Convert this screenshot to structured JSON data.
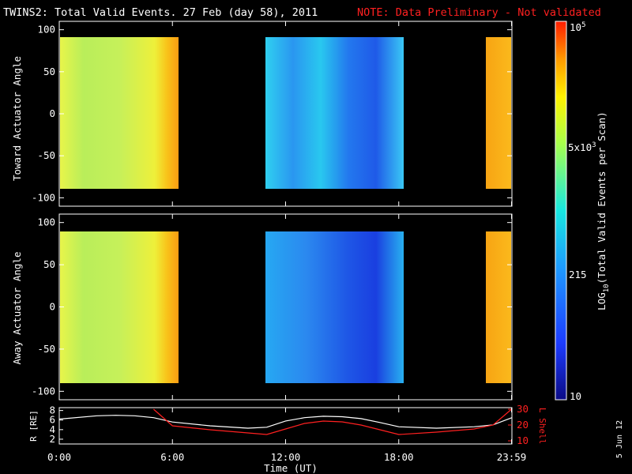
{
  "title": "TWINS2: Total Valid Events. 27 Feb (day  58), 2011",
  "note": "NOTE: Data Preliminary - Not validated",
  "date_stamp": "5 Jun 12",
  "chart_data": [
    {
      "type": "heatmap",
      "panel": "toward",
      "ylabel": "Toward Actuator Angle",
      "yticks": [
        100,
        50,
        0,
        -50,
        -100
      ],
      "ylim": [
        -110,
        110
      ],
      "blocks": [
        {
          "x_start": "0:00",
          "x_end": "6:05",
          "y_range": [
            -88,
            90
          ],
          "log_level_start": 3.6,
          "log_level_end": 4.3
        },
        {
          "x_start": "10:50",
          "x_end": "18:00",
          "y_range": [
            -88,
            90
          ],
          "log_level_start": 2.7,
          "log_level_end": 3.0
        },
        {
          "x_start": "22:30",
          "x_end": "23:59",
          "y_range": [
            -88,
            90
          ],
          "log_level_start": 4.3,
          "log_level_end": 4.4
        }
      ]
    },
    {
      "type": "heatmap",
      "panel": "away",
      "ylabel": "Away Actuator Angle",
      "yticks": [
        100,
        50,
        0,
        -50,
        -100
      ],
      "ylim": [
        -110,
        110
      ],
      "blocks": [
        {
          "x_start": "0:00",
          "x_end": "6:05",
          "y_range": [
            -88,
            90
          ],
          "log_level_start": 3.6,
          "log_level_end": 4.3
        },
        {
          "x_start": "10:50",
          "x_end": "18:00",
          "y_range": [
            -88,
            90
          ],
          "log_level_start": 2.6,
          "log_level_end": 2.9
        },
        {
          "x_start": "22:30",
          "x_end": "23:59",
          "y_range": [
            -88,
            90
          ],
          "log_level_start": 4.3,
          "log_level_end": 4.4
        }
      ]
    },
    {
      "type": "line",
      "panel": "ephemeris",
      "ylabel_left": "R [RE]",
      "ylabel_right": "L Shell",
      "left_ticks": [
        2,
        4,
        6,
        8
      ],
      "right_ticks": [
        10,
        20,
        30
      ],
      "series": [
        {
          "name": "R [RE]",
          "color": "#ffffff",
          "x": [
            0,
            2,
            3,
            4,
            5,
            6,
            8,
            10,
            11,
            12,
            13,
            14,
            15,
            16,
            17,
            18,
            20,
            22,
            23,
            24
          ],
          "y": [
            6.2,
            6.9,
            7.0,
            6.9,
            6.5,
            5.6,
            4.8,
            4.3,
            4.5,
            5.8,
            6.5,
            6.8,
            6.7,
            6.3,
            5.5,
            4.6,
            4.3,
            4.6,
            5.0,
            6.5
          ]
        },
        {
          "name": "L Shell",
          "color": "#ff2020",
          "x": [
            5,
            6,
            8,
            10,
            11,
            12,
            13,
            14,
            15,
            16,
            17,
            18,
            20,
            22,
            23,
            23.98
          ],
          "y": [
            30,
            19.5,
            17,
            15,
            14,
            17.5,
            21,
            22.5,
            22,
            20,
            17,
            14,
            15.5,
            17.5,
            20,
            30
          ]
        }
      ]
    }
  ],
  "x_axis": {
    "ticks": [
      "0:00",
      "6:00",
      "12:00",
      "18:00",
      "23:59"
    ],
    "label": "Time (UT)"
  },
  "colorbar": {
    "label": "LOG10(Total Valid Events per Scan)",
    "ticks": [
      "10",
      "215",
      "5x10^3",
      "10^5"
    ]
  }
}
